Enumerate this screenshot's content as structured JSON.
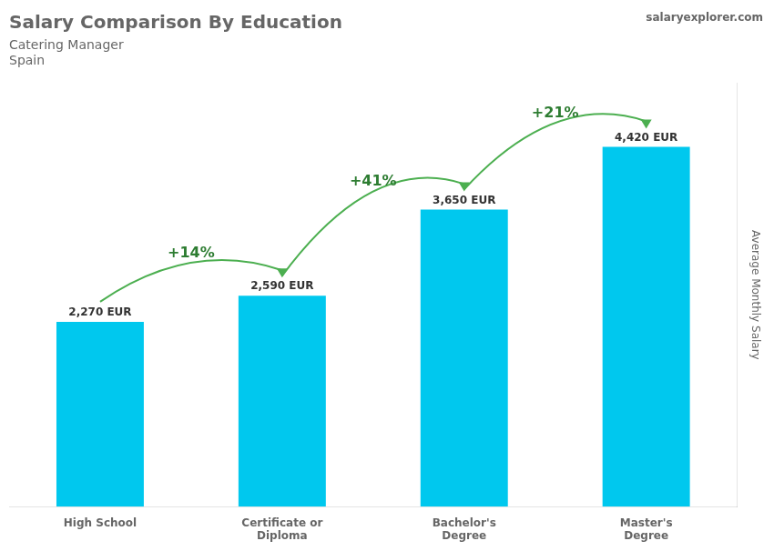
{
  "chart_data": {
    "type": "bar",
    "title": "Salary Comparison By Education",
    "subtitle": "Catering Manager",
    "country": "Spain",
    "source": "salaryexplorer.com",
    "ylabel": "Average Monthly Salary",
    "categories": [
      "High School",
      "Certificate or\nDiploma",
      "Bachelor's\nDegree",
      "Master's\nDegree"
    ],
    "values": [
      2270,
      2590,
      3650,
      4420
    ],
    "value_labels": [
      "2,270 EUR",
      "2,590 EUR",
      "3,650 EUR",
      "4,420 EUR"
    ],
    "data_labels": true,
    "annotations": [
      "+14%",
      "+41%",
      "+21%"
    ],
    "color": "#00c8ee",
    "ylim": [
      0,
      5200
    ],
    "tick_labels": "x",
    "grid": false
  }
}
